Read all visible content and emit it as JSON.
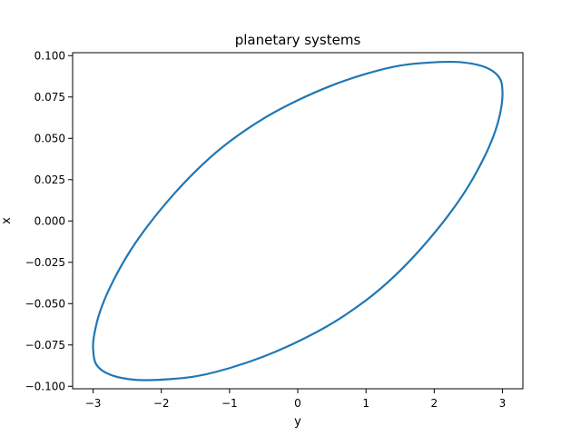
{
  "chart_data": {
    "type": "line",
    "title": "planetary systems",
    "xlabel": "y",
    "ylabel": "x",
    "xlim": [
      -3.3,
      3.3
    ],
    "ylim": [
      -0.1015,
      0.1018
    ],
    "xticks": [
      -3,
      -2,
      -1,
      0,
      1,
      2,
      3
    ],
    "xtick_labels": [
      "−3",
      "−2",
      "−1",
      "0",
      "1",
      "2",
      "3"
    ],
    "yticks": [
      -0.1,
      -0.075,
      -0.05,
      -0.025,
      0.0,
      0.025,
      0.05,
      0.075,
      0.1
    ],
    "ytick_labels": [
      "−0.100",
      "−0.075",
      "−0.050",
      "−0.025",
      "0.000",
      "0.025",
      "0.050",
      "0.075",
      "0.100"
    ],
    "grid": false,
    "series": [
      {
        "color": "#1f77b4",
        "x": [
          -3.0,
          -2.98,
          -2.9,
          -2.75,
          -2.5,
          -2.2,
          -1.8,
          -1.4,
          -1.0,
          -0.5,
          0.0,
          0.5,
          1.0,
          1.5,
          2.0,
          2.4,
          2.75,
          2.95,
          3.0,
          2.98,
          2.9,
          2.75,
          2.5,
          2.2,
          1.8,
          1.4,
          1.0,
          0.5,
          0.0,
          -0.5,
          -1.0,
          -1.5,
          -2.0,
          -2.4,
          -2.75,
          -2.95,
          -3.0
        ],
        "y": [
          -0.077,
          -0.068,
          -0.055,
          -0.04,
          -0.021,
          -0.003,
          0.017,
          0.034,
          0.048,
          0.062,
          0.073,
          0.082,
          0.089,
          0.094,
          0.096,
          0.096,
          0.093,
          0.087,
          0.079,
          0.068,
          0.055,
          0.04,
          0.021,
          0.003,
          -0.017,
          -0.034,
          -0.048,
          -0.062,
          -0.073,
          -0.082,
          -0.089,
          -0.094,
          -0.096,
          -0.096,
          -0.093,
          -0.087,
          -0.077
        ]
      }
    ]
  }
}
